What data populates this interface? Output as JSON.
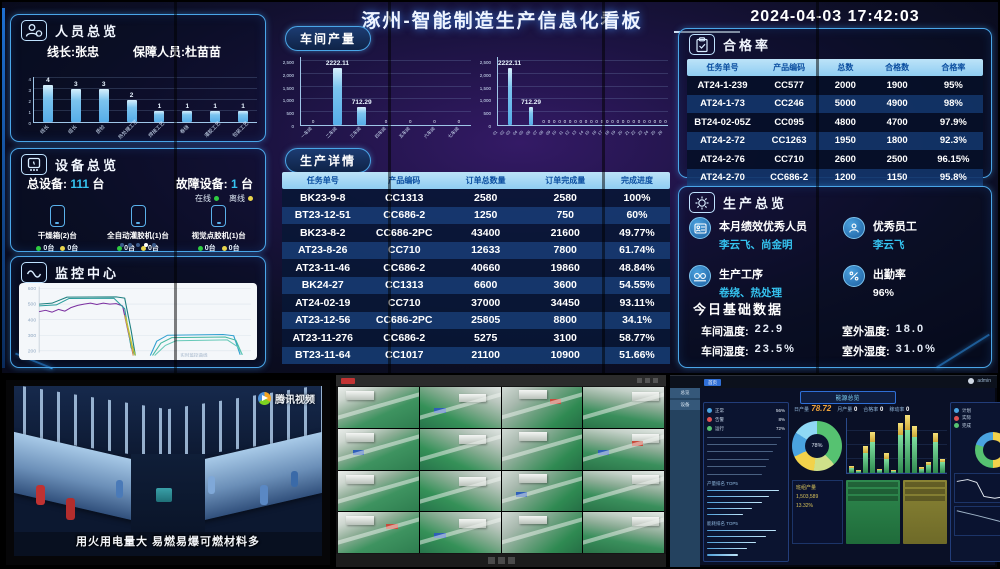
{
  "header": {
    "title": "涿州-智能制造生产信息化看板",
    "datetime": "2024-04-03 17:42:03"
  },
  "personnel": {
    "title": "人员总览",
    "line_leader": "线长:张忠",
    "support_staff": "保障人员:杜苗苗",
    "chart_data": {
      "type": "bar",
      "categories": [
        "线长",
        "组长",
        "质检",
        "热处理工艺",
        "焊接工艺",
        "卷绕",
        "灌胶工艺",
        "包装工艺"
      ],
      "values": [
        4,
        3,
        3,
        2,
        1,
        1,
        1,
        1
      ],
      "labels": [
        "4",
        "3",
        "3",
        "2",
        "1",
        "1",
        "1",
        "1"
      ],
      "yticks": [
        0,
        1,
        2,
        3,
        4
      ],
      "max": 4
    }
  },
  "equipment": {
    "title": "设备总览",
    "total_label": "总设备:",
    "total_value": "111",
    "total_unit": "台",
    "fault_label": "故障设备:",
    "fault_value": "1",
    "fault_unit": "台",
    "legend_online": "在线",
    "legend_offline": "离线",
    "devices": [
      {
        "name": "干燥箱(2)台",
        "online": "0台",
        "offline": "0台"
      },
      {
        "name": "全自动灌胶机(1)台",
        "online": "0台",
        "offline": "0台"
      },
      {
        "name": "视觉点胶机(1)台",
        "online": "0台",
        "offline": "0台"
      }
    ]
  },
  "monitoring": {
    "title": "监控中心",
    "note": "实时监控曲线",
    "chart_data": {
      "type": "line",
      "yticks": [
        600,
        500,
        400,
        300,
        200
      ],
      "series": [
        {
          "color": "#1d7f7f",
          "points": [
            [
              0,
              500
            ],
            [
              6,
              506
            ],
            [
              13,
              545
            ],
            [
              36,
              546
            ],
            [
              40,
              538
            ],
            [
              43,
              330
            ],
            [
              45,
              170
            ]
          ]
        },
        {
          "color": "#7b2fa0",
          "points": [
            [
              0,
              452
            ],
            [
              3,
              460
            ],
            [
              6,
              448
            ],
            [
              9,
              466
            ],
            [
              12,
              455
            ],
            [
              15,
              478
            ],
            [
              18,
              492
            ],
            [
              21,
              500
            ],
            [
              24,
              506
            ],
            [
              27,
              497
            ],
            [
              30,
              506
            ],
            [
              33,
              500
            ],
            [
              36,
              503
            ],
            [
              39,
              488
            ],
            [
              42,
              300
            ],
            [
              44,
              170
            ]
          ]
        },
        {
          "color": "#2a9d9d",
          "points": [
            [
              0,
              488
            ],
            [
              8,
              495
            ],
            [
              14,
              536
            ],
            [
              35,
              537
            ],
            [
              40,
              470
            ],
            [
              43,
              220
            ],
            [
              45,
              170
            ]
          ]
        },
        {
          "color": "#e0a040",
          "points": [
            [
              40,
              430
            ],
            [
              43,
              250
            ],
            [
              44,
              170
            ]
          ]
        },
        {
          "color": "#b8c832",
          "points": [
            [
              40.5,
              415
            ],
            [
              43.5,
              235
            ],
            [
              45,
              170
            ]
          ]
        },
        {
          "color": "#2f9fd0",
          "points": [
            [
              52,
              170
            ],
            [
              55,
              262
            ],
            [
              60,
              300
            ],
            [
              86,
              305
            ],
            [
              91,
              297
            ],
            [
              94,
              175
            ]
          ]
        },
        {
          "color": "#43b89f",
          "points": [
            [
              53,
              170
            ],
            [
              57,
              250
            ],
            [
              62,
              285
            ],
            [
              87,
              289
            ],
            [
              92,
              268
            ],
            [
              95,
              175
            ]
          ]
        },
        {
          "color": "#66c9b8",
          "points": [
            [
              54,
              170
            ],
            [
              59,
              235
            ],
            [
              64,
              265
            ],
            [
              88,
              270
            ],
            [
              93,
              225
            ],
            [
              95,
              175
            ]
          ]
        }
      ]
    }
  },
  "workshop_output": {
    "label": "车间产量",
    "charts": [
      {
        "type": "bar",
        "max": 2500,
        "yticks": [
          0,
          500,
          1000,
          1500,
          2000,
          2500
        ],
        "categories": [
          "一车间",
          "二车间",
          "三车间",
          "四车间",
          "五车间",
          "六车间",
          "七车间"
        ],
        "values": [
          0,
          2222.11,
          712.29,
          0,
          0,
          0,
          0
        ],
        "labels": [
          "0",
          "2222.11",
          "712.29",
          "0",
          "0",
          "0",
          "0"
        ]
      },
      {
        "type": "bar",
        "max": 2500,
        "yticks": [
          0,
          500,
          1000,
          1500,
          2000,
          2500
        ],
        "categories": [
          "01",
          "02",
          "03",
          "04",
          "05",
          "06",
          "07",
          "08",
          "09",
          "10",
          "11",
          "12",
          "13",
          "14",
          "15",
          "16",
          "17",
          "18",
          "19",
          "20",
          "21",
          "22",
          "23",
          "24",
          "25",
          "26"
        ],
        "values": [
          2222.11,
          712.29,
          0,
          0,
          0,
          0,
          0,
          0,
          0,
          0,
          0,
          0,
          0,
          0,
          0,
          0,
          0,
          0,
          0,
          0,
          0,
          0,
          0,
          0,
          0,
          0
        ],
        "labels": [
          "2222.11",
          "712.29",
          "0",
          "0",
          "0",
          "0",
          "0",
          "0",
          "0",
          "0",
          "0",
          "0",
          "0",
          "0",
          "0",
          "0",
          "0",
          "0",
          "0",
          "0",
          "0",
          "0",
          "0",
          "0",
          "0",
          "0"
        ]
      }
    ]
  },
  "production_details": {
    "label": "生产详情",
    "columns": [
      "任务单号",
      "产品编码",
      "订单总数量",
      "订单完成量",
      "完成进度"
    ],
    "rows": [
      [
        "BK23-9-8",
        "CC1313",
        "2580",
        "2580",
        "100%"
      ],
      [
        "BT23-12-51",
        "CC686-2",
        "1250",
        "750",
        "60%"
      ],
      [
        "BK23-8-2",
        "CC686-2PC",
        "43400",
        "21600",
        "49.77%"
      ],
      [
        "AT23-8-26",
        "CC710",
        "12633",
        "7800",
        "61.74%"
      ],
      [
        "AT23-11-46",
        "CC686-2",
        "40660",
        "19860",
        "48.84%"
      ],
      [
        "BK24-27",
        "CC1313",
        "6600",
        "3600",
        "54.55%"
      ],
      [
        "AT24-02-19",
        "CC710",
        "37000",
        "34450",
        "93.11%"
      ],
      [
        "AT23-12-56",
        "CC686-2PC",
        "25805",
        "8800",
        "34.1%"
      ],
      [
        "AT23-11-276",
        "CC686-2",
        "5275",
        "3100",
        "58.77%"
      ],
      [
        "BT23-11-64",
        "CC1017",
        "21100",
        "10900",
        "51.66%"
      ]
    ]
  },
  "pass_rate": {
    "title": "合格率",
    "columns": [
      "任务单号",
      "产品编码",
      "总数",
      "合格数",
      "合格率"
    ],
    "rows": [
      [
        "AT24-1-239",
        "CC577",
        "2000",
        "1900",
        "95%"
      ],
      [
        "AT24-1-73",
        "CC246",
        "5000",
        "4900",
        "98%"
      ],
      [
        "BT24-02-05Z",
        "CC095",
        "4800",
        "4700",
        "97.9%"
      ],
      [
        "AT24-2-72",
        "CC1263",
        "1950",
        "1800",
        "92.3%"
      ],
      [
        "AT24-2-76",
        "CC710",
        "2600",
        "2500",
        "96.15%"
      ],
      [
        "AT24-2-70",
        "CC686-2",
        "1200",
        "1150",
        "95.8%"
      ]
    ]
  },
  "production_overview": {
    "title": "生产总览",
    "items": [
      {
        "label": "本月绩效优秀人员",
        "value": "李云飞、尚金明",
        "color": "#35c3f0"
      },
      {
        "label": "优秀员工",
        "value": "李云飞",
        "color": "#35c3f0"
      },
      {
        "label": "生产工序",
        "value": "卷绕、热处理",
        "color": "#35c3f0"
      },
      {
        "label": "出勤率",
        "value": "96%",
        "color": "#ffffff"
      }
    ],
    "today": {
      "title": "今日基础数据",
      "r1l": "车间温度:",
      "r1lv": "22.9",
      "r1r": "室外温度:",
      "r1rv": "18.0",
      "r2l": "车间湿度:",
      "r2lv": "23.5%",
      "r2r": "室外湿度:",
      "r2rv": "31.0%"
    }
  },
  "video_feed": {
    "watermark": "腾讯视频",
    "caption": "用火用电量大 易燃易爆可燃材料多"
  },
  "mini_dashboard": {
    "topbar": {
      "chip": "首页",
      "user": "admin"
    },
    "sidebar": [
      "总览",
      "设备"
    ],
    "title": "能源总览",
    "stats": [
      {
        "label": "日产量",
        "value": "78.72"
      },
      {
        "label": "月产量",
        "value": "0"
      },
      {
        "label": "合格率",
        "value": "0"
      },
      {
        "label": "稼动率",
        "value": "0"
      }
    ],
    "left_panel": {
      "legend": [
        {
          "color": "#4aa3e0",
          "label": "正常",
          "v": "56%"
        },
        {
          "color": "#e05252",
          "label": "告警",
          "v": "8%"
        },
        {
          "color": "#56c271",
          "label": "运行",
          "v": "72%"
        }
      ],
      "group1": {
        "title": "产量排名 TOP5",
        "bars": [
          92,
          80,
          70,
          58,
          46
        ]
      },
      "group2": {
        "title": "能耗排名 TOP5",
        "bars": [
          88,
          76,
          63,
          51,
          40
        ]
      }
    },
    "center": {
      "donut_label": "78%",
      "bars_green": [
        6,
        2,
        22,
        34,
        3,
        16,
        2,
        42,
        48,
        40,
        5,
        9,
        34,
        12
      ],
      "bars_yellow": [
        2,
        1,
        8,
        12,
        1,
        6,
        1,
        14,
        16,
        12,
        2,
        3,
        11,
        4
      ],
      "note_lines": [
        "班组产量",
        "1,503,589",
        "13.32%"
      ]
    },
    "right_panel": {
      "legend": [
        {
          "color": "#4aa3e0",
          "label": "计划"
        },
        {
          "color": "#e05252",
          "label": "实际"
        },
        {
          "color": "#56c271",
          "label": "完成"
        }
      ],
      "line1_points": "2,8 14,6 24,9 32,24 44,26 56,24 64,7 72,5 78,10 82,9",
      "line2_points": "2,4 24,9 48,15 82,24"
    }
  }
}
